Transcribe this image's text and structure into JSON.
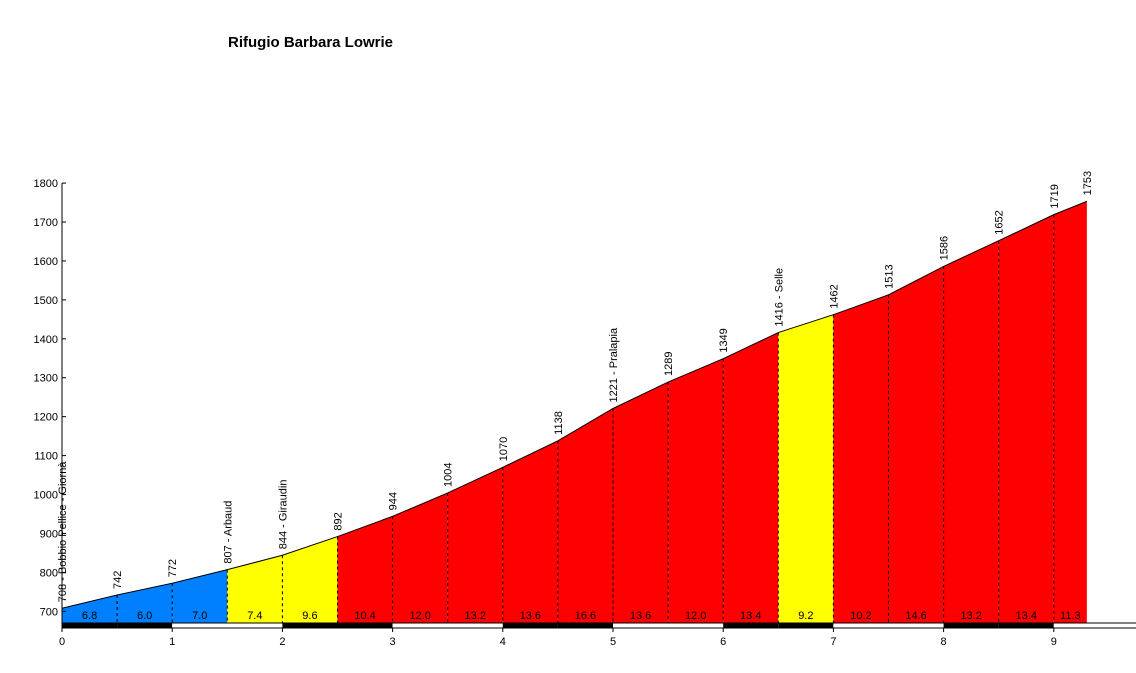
{
  "chart_data": {
    "type": "area",
    "title": "Rifugio Barbara Lowrie",
    "xlabel": "",
    "ylabel": "",
    "xlim": [
      0,
      9.3
    ],
    "ylim": [
      670,
      1800
    ],
    "x_ticks": [
      0,
      1,
      2,
      3,
      4,
      5,
      6,
      7,
      8,
      9
    ],
    "y_ticks": [
      700,
      800,
      900,
      1000,
      1100,
      1200,
      1300,
      1400,
      1500,
      1600,
      1700,
      1800
    ],
    "grid": false,
    "profile": [
      {
        "x": 0.0,
        "y": 708,
        "label": "708 - Bobbio Pellice - Giornà"
      },
      {
        "x": 0.5,
        "y": 742,
        "label": "742"
      },
      {
        "x": 1.0,
        "y": 772,
        "label": "772"
      },
      {
        "x": 1.5,
        "y": 807,
        "label": "807 - Arbaud"
      },
      {
        "x": 2.0,
        "y": 844,
        "label": "844 - Giraudin"
      },
      {
        "x": 2.5,
        "y": 892,
        "label": "892"
      },
      {
        "x": 3.0,
        "y": 944,
        "label": "944"
      },
      {
        "x": 3.5,
        "y": 1004,
        "label": "1004"
      },
      {
        "x": 4.0,
        "y": 1070,
        "label": "1070"
      },
      {
        "x": 4.5,
        "y": 1138,
        "label": "1138"
      },
      {
        "x": 5.0,
        "y": 1221,
        "label": "1221 - Pralapia"
      },
      {
        "x": 5.5,
        "y": 1289,
        "label": "1289"
      },
      {
        "x": 6.0,
        "y": 1349,
        "label": "1349"
      },
      {
        "x": 6.5,
        "y": 1416,
        "label": "1416 - Selle"
      },
      {
        "x": 7.0,
        "y": 1462,
        "label": "1462"
      },
      {
        "x": 7.5,
        "y": 1513,
        "label": "1513"
      },
      {
        "x": 8.0,
        "y": 1586,
        "label": "1586"
      },
      {
        "x": 8.5,
        "y": 1652,
        "label": "1652"
      },
      {
        "x": 9.0,
        "y": 1719,
        "label": "1719"
      },
      {
        "x": 9.3,
        "y": 1753,
        "label": "1753"
      }
    ],
    "segments": [
      {
        "grade": "6.8",
        "color": "#0080ff"
      },
      {
        "grade": "6.0",
        "color": "#0080ff"
      },
      {
        "grade": "7.0",
        "color": "#0080ff"
      },
      {
        "grade": "7.4",
        "color": "#ffff00"
      },
      {
        "grade": "9.6",
        "color": "#ffff00"
      },
      {
        "grade": "10.4",
        "color": "#ff0000"
      },
      {
        "grade": "12.0",
        "color": "#ff0000"
      },
      {
        "grade": "13.2",
        "color": "#ff0000"
      },
      {
        "grade": "13.6",
        "color": "#ff0000"
      },
      {
        "grade": "16.6",
        "color": "#ff0000"
      },
      {
        "grade": "13.6",
        "color": "#ff0000"
      },
      {
        "grade": "12.0",
        "color": "#ff0000"
      },
      {
        "grade": "13.4",
        "color": "#ff0000"
      },
      {
        "grade": "9.2",
        "color": "#ffff00"
      },
      {
        "grade": "10.2",
        "color": "#ff0000"
      },
      {
        "grade": "14.6",
        "color": "#ff0000"
      },
      {
        "grade": "13.2",
        "color": "#ff0000"
      },
      {
        "grade": "13.4",
        "color": "#ff0000"
      },
      {
        "grade": "11.3",
        "color": "#ff0000"
      }
    ],
    "km_bar_colors": [
      "#000000",
      "#ffffff"
    ]
  }
}
